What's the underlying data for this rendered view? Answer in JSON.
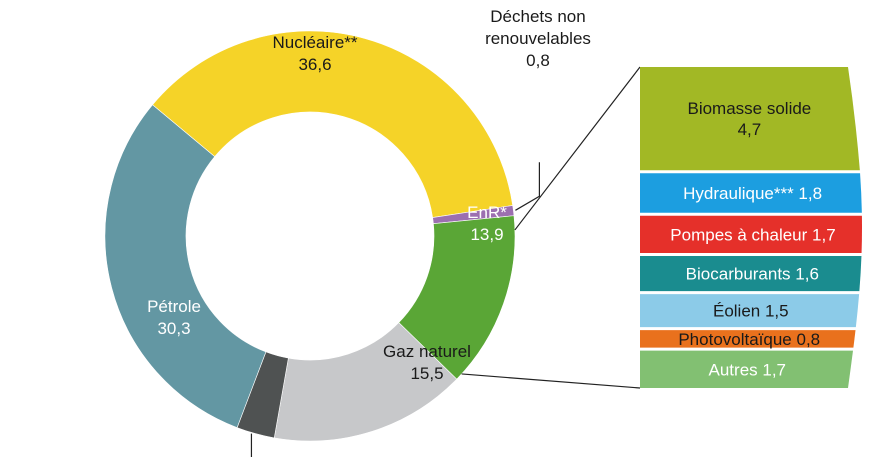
{
  "chart_data": [
    {
      "type": "pie",
      "subtype": "donut",
      "categories": [
        "Nucléaire**",
        "Déchets non renouvelables",
        "EnR*",
        "Gaz naturel",
        "",
        "Pétrole"
      ],
      "values": [
        36.6,
        0.8,
        13.9,
        15.5,
        3.0,
        30.3
      ],
      "value_labels": [
        "36,6",
        "0,8",
        "13,9",
        "15,5",
        "",
        "30,3"
      ],
      "colors": [
        "#f5d328",
        "#9c6fb0",
        "#5aa636",
        "#c7c8ca",
        "#4f5252",
        "#6397a3"
      ],
      "slice_label_lines": [
        [
          "Nucléaire**",
          "36,6"
        ],
        [
          "Déchets non",
          "renouvelables",
          "0,8"
        ],
        [
          "EnR*",
          "13,9"
        ],
        [
          "Gaz naturel",
          "15,5"
        ],
        [],
        [
          "Pétrole",
          "30,3"
        ]
      ]
    },
    {
      "type": "bar",
      "subtype": "stacked-breakdown",
      "breakdown_of": "EnR*",
      "categories": [
        "Biomasse solide",
        "Hydraulique***",
        "Pompes à chaleur",
        "Biocarburants",
        "Éolien",
        "Photovoltaïque",
        "Autres"
      ],
      "values": [
        4.7,
        1.8,
        1.7,
        1.6,
        1.5,
        0.8,
        1.7
      ],
      "colors": [
        "#a2b825",
        "#1c9ee0",
        "#e5302a",
        "#1a8c8f",
        "#8ccbe8",
        "#e9711d",
        "#82c072"
      ],
      "label_lines": [
        [
          "Biomasse solide",
          "4,7"
        ],
        [
          "Hydraulique*** 1,8"
        ],
        [
          "Pompes à chaleur 1,7"
        ],
        [
          "Biocarburants 1,6"
        ],
        [
          "Éolien 1,5"
        ],
        [
          "Photovoltaïque 0,8"
        ],
        [
          "Autres 1,7"
        ]
      ]
    }
  ]
}
